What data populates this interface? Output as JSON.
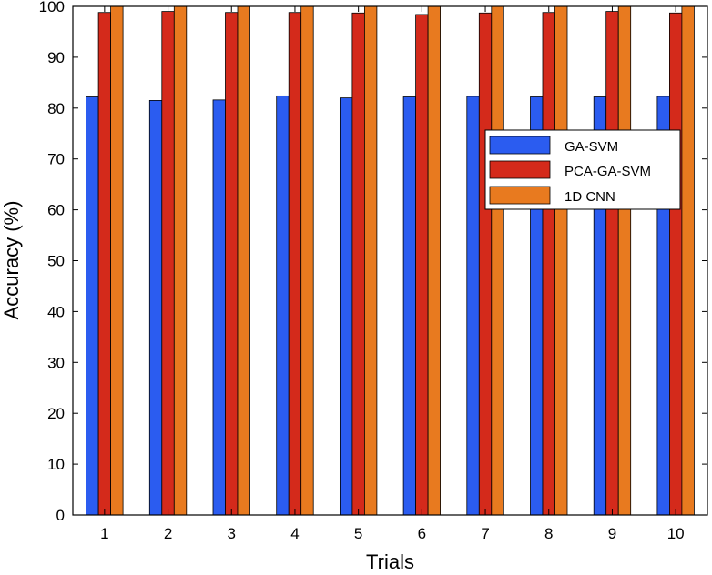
{
  "chart_data": {
    "type": "bar",
    "title": "",
    "xlabel": "Trials",
    "ylabel": "Accuracy (%)",
    "ylim": [
      0,
      100
    ],
    "yticks": [
      "0",
      "10",
      "20",
      "30",
      "40",
      "50",
      "60",
      "70",
      "80",
      "90",
      "100"
    ],
    "categories": [
      "1",
      "2",
      "3",
      "4",
      "5",
      "6",
      "7",
      "8",
      "9",
      "10"
    ],
    "series": [
      {
        "name": "GA-SVM",
        "color": "#2b5cf0",
        "values": [
          82.2,
          81.5,
          81.6,
          82.4,
          82.0,
          82.2,
          82.3,
          82.2,
          82.2,
          82.3
        ]
      },
      {
        "name": "PCA-GA-SVM",
        "color": "#d42a1b",
        "values": [
          98.8,
          99.0,
          98.8,
          98.8,
          98.7,
          98.4,
          98.7,
          98.8,
          99.0,
          98.7
        ]
      },
      {
        "name": "1D CNN",
        "color": "#e87a1f",
        "values": [
          100,
          100,
          100,
          100,
          100,
          100,
          100,
          100,
          100,
          100
        ]
      }
    ],
    "legend_position": "right",
    "grid": false
  }
}
